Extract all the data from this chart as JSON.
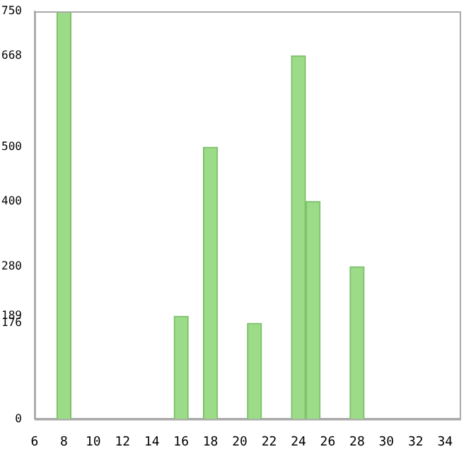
{
  "chart_data": {
    "type": "bar",
    "x": [
      8,
      16,
      18,
      21,
      24,
      25,
      28
    ],
    "values": [
      750,
      189,
      500,
      176,
      668,
      400,
      280
    ],
    "color": "#9cdc88",
    "xlim": [
      6,
      35
    ],
    "xticks": [
      6,
      8,
      10,
      12,
      14,
      16,
      18,
      20,
      22,
      24,
      26,
      28,
      30,
      32,
      34
    ],
    "ylim": [
      0,
      750
    ],
    "yticks": [
      0,
      176,
      189,
      280,
      400,
      500,
      668,
      750
    ],
    "grid": false,
    "legend": false
  }
}
